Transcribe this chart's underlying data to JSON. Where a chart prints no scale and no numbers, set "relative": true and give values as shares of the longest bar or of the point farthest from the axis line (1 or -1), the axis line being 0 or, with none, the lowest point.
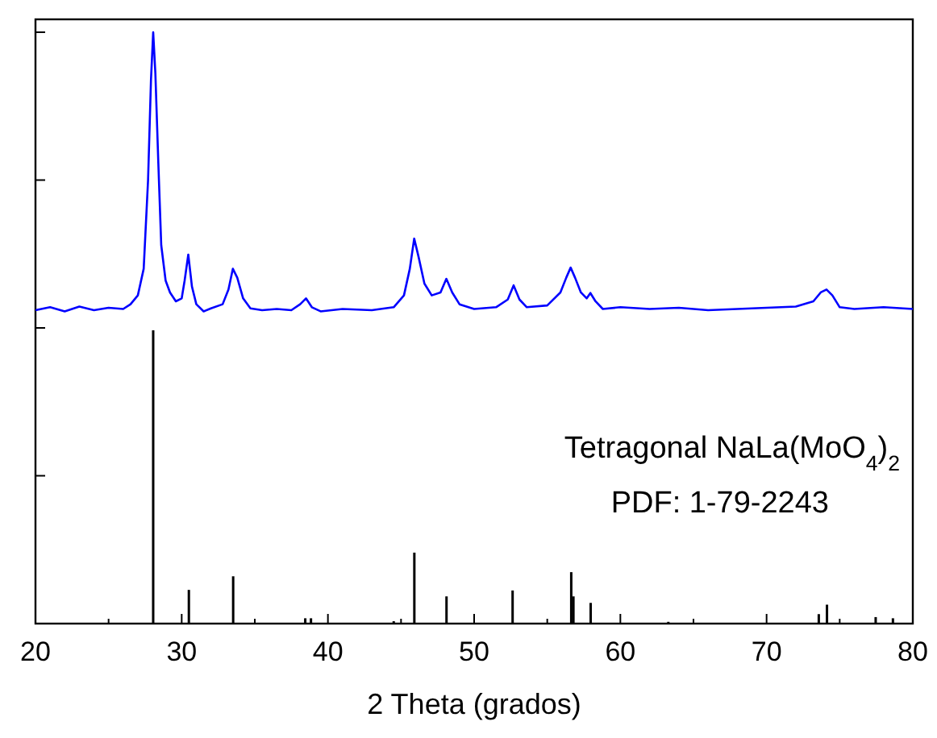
{
  "chart_data": {
    "type": "line",
    "relative": true,
    "xlabel": "2 Theta (grados)",
    "xlim": [
      20,
      80
    ],
    "xticks": [
      20,
      30,
      40,
      50,
      60,
      70,
      80
    ],
    "tick_labels": "x",
    "grid": false,
    "legend": false,
    "marker": "none",
    "line_style": "solid",
    "annotations": [
      "Tetragonal NaLa(MoO$_{4}$)$_{2}$",
      "PDF: 1-79-2243"
    ],
    "series": [
      {
        "color": "#0000ff",
        "x": [
          20,
          21,
          22,
          23,
          24,
          25,
          26,
          26.5,
          27,
          27.4,
          27.7,
          27.9,
          28.05,
          28.2,
          28.4,
          28.6,
          28.9,
          29.2,
          29.6,
          30.0,
          30.2,
          30.45,
          30.7,
          31.0,
          31.5,
          32,
          32.8,
          33.2,
          33.5,
          33.8,
          34.2,
          34.7,
          35.5,
          36.5,
          37.5,
          38.1,
          38.5,
          38.9,
          39.5,
          41,
          43,
          44.5,
          45.2,
          45.6,
          45.9,
          46.2,
          46.6,
          47.1,
          47.7,
          48.1,
          48.5,
          49,
          50,
          51.5,
          52.3,
          52.7,
          53.1,
          53.6,
          55,
          55.9,
          56.3,
          56.6,
          56.9,
          57.3,
          57.7,
          57.95,
          58.3,
          58.8,
          60,
          62,
          64,
          66,
          68,
          70,
          72,
          73.2,
          73.7,
          74.1,
          74.5,
          75,
          76,
          78,
          80
        ],
        "values": [
          0.53,
          0.535,
          0.528,
          0.536,
          0.53,
          0.534,
          0.532,
          0.54,
          0.555,
          0.6,
          0.75,
          0.92,
          1.0,
          0.93,
          0.78,
          0.64,
          0.58,
          0.56,
          0.545,
          0.55,
          0.58,
          0.624,
          0.57,
          0.54,
          0.528,
          0.533,
          0.54,
          0.565,
          0.6,
          0.585,
          0.55,
          0.533,
          0.53,
          0.532,
          0.53,
          0.54,
          0.55,
          0.535,
          0.528,
          0.532,
          0.53,
          0.535,
          0.555,
          0.6,
          0.651,
          0.62,
          0.575,
          0.555,
          0.56,
          0.583,
          0.56,
          0.54,
          0.532,
          0.535,
          0.548,
          0.572,
          0.548,
          0.535,
          0.538,
          0.56,
          0.585,
          0.602,
          0.585,
          0.56,
          0.55,
          0.559,
          0.545,
          0.532,
          0.535,
          0.532,
          0.534,
          0.53,
          0.532,
          0.534,
          0.536,
          0.545,
          0.56,
          0.565,
          0.555,
          0.535,
          0.532,
          0.535,
          0.532
        ]
      },
      {
        "type": "bar",
        "color": "#000000",
        "x": [
          28.05,
          30.49,
          33.52,
          38.45,
          38.84,
          44.5,
          45.91,
          48.11,
          52.63,
          56.64,
          56.79,
          57.97,
          63.28,
          73.57,
          74.13,
          77.46,
          78.64
        ],
        "values": [
          0.496,
          0.057,
          0.08,
          0.009,
          0.009,
          0.004,
          0.12,
          0.046,
          0.056,
          0.087,
          0.046,
          0.035,
          0.003,
          0.016,
          0.032,
          0.011,
          0.009
        ]
      }
    ]
  }
}
